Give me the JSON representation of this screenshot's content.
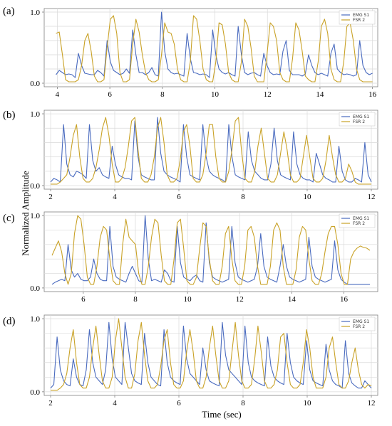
{
  "figure": {
    "ylabel": "Normalized Amplitude",
    "xlabel": "Time (sec)",
    "colors": {
      "emg": "#4a6bbf",
      "fsr": "#c9a227",
      "grid": "#d9d9d9",
      "axis": "#7f7f7f"
    }
  },
  "chart_data": [
    {
      "type": "line",
      "panel_label": "(a)",
      "xlim": [
        3.5,
        16.2
      ],
      "ylim": [
        -0.05,
        1.05
      ],
      "xticks": [
        "4",
        "6",
        "8",
        "10",
        "12",
        "14",
        "16"
      ],
      "yticks": [
        "0.0",
        "1.0"
      ],
      "grid": true,
      "legend": "top-right",
      "series": [
        {
          "name": "EMG S1",
          "x0": 3.95,
          "x1": 16.0,
          "values": [
            0.12,
            0.18,
            0.15,
            0.12,
            0.13,
            0.12,
            0.08,
            0.42,
            0.25,
            0.14,
            0.13,
            0.12,
            0.12,
            0.18,
            0.15,
            0.1,
            0.6,
            0.3,
            0.18,
            0.15,
            0.12,
            0.14,
            0.2,
            0.14,
            0.75,
            0.4,
            0.15,
            0.15,
            0.12,
            0.15,
            0.22,
            0.12,
            0.1,
            1.0,
            0.45,
            0.2,
            0.15,
            0.13,
            0.14,
            0.12,
            0.1,
            0.7,
            0.35,
            0.15,
            0.14,
            0.12,
            0.13,
            0.12,
            0.08,
            0.75,
            0.4,
            0.2,
            0.15,
            0.13,
            0.15,
            0.12,
            0.1,
            0.8,
            0.4,
            0.15,
            0.12,
            0.14,
            0.15,
            0.12,
            0.1,
            0.42,
            0.25,
            0.15,
            0.12,
            0.13,
            0.12,
            0.45,
            0.6,
            0.18,
            0.12,
            0.12,
            0.12,
            0.1,
            0.13,
            0.4,
            0.25,
            0.15,
            0.12,
            0.14,
            0.12,
            0.1,
            0.42,
            0.55,
            0.2,
            0.15,
            0.12,
            0.13,
            0.12,
            0.1,
            0.12,
            0.6,
            0.25,
            0.15,
            0.12,
            0.14
          ]
        },
        {
          "name": "FSR 2",
          "x0": 3.95,
          "x1": 16.0,
          "values": [
            0.7,
            0.72,
            0.4,
            0.05,
            0.02,
            0.02,
            0.02,
            0.05,
            0.25,
            0.6,
            0.7,
            0.45,
            0.1,
            0.02,
            0.02,
            0.05,
            0.5,
            0.9,
            0.95,
            0.7,
            0.15,
            0.02,
            0.02,
            0.05,
            0.55,
            0.9,
            0.72,
            0.4,
            0.15,
            0.05,
            0.02,
            0.02,
            0.05,
            0.4,
            0.85,
            0.72,
            0.7,
            0.55,
            0.2,
            0.05,
            0.02,
            0.02,
            0.3,
            0.95,
            0.9,
            0.6,
            0.2,
            0.05,
            0.02,
            0.02,
            0.3,
            0.85,
            0.82,
            0.55,
            0.15,
            0.05,
            0.02,
            0.02,
            0.3,
            0.9,
            0.8,
            0.5,
            0.1,
            0.02,
            0.02,
            0.02,
            0.4,
            0.85,
            0.8,
            0.6,
            0.15,
            0.05,
            0.02,
            0.02,
            0.35,
            0.85,
            0.75,
            0.45,
            0.1,
            0.05,
            0.02,
            0.02,
            0.3,
            0.8,
            0.9,
            0.7,
            0.2,
            0.05,
            0.02,
            0.02,
            0.3,
            0.8,
            0.85,
            0.6,
            0.2,
            0.05,
            0.02,
            0.02,
            0.02,
            0.02
          ]
        }
      ]
    },
    {
      "type": "line",
      "panel_label": "(b)",
      "xlim": [
        1.8,
        12.2
      ],
      "ylim": [
        -0.05,
        1.05
      ],
      "xticks": [
        "2",
        "4",
        "6",
        "8",
        "10",
        "12"
      ],
      "yticks": [
        "0.0",
        "1.0"
      ],
      "grid": true,
      "legend": "top-right",
      "series": [
        {
          "name": "EMG S1",
          "x0": 2.0,
          "x1": 12.0,
          "values": [
            0.05,
            0.1,
            0.08,
            0.05,
            0.85,
            0.3,
            0.15,
            0.12,
            0.2,
            0.18,
            0.15,
            0.1,
            0.85,
            0.35,
            0.2,
            0.25,
            0.15,
            0.12,
            0.1,
            0.55,
            0.3,
            0.15,
            0.12,
            0.1,
            0.1,
            0.08,
            0.9,
            0.4,
            0.15,
            0.12,
            0.1,
            0.08,
            0.08,
            0.95,
            0.45,
            0.2,
            0.15,
            0.12,
            0.1,
            0.08,
            0.05,
            0.85,
            0.4,
            0.15,
            0.12,
            0.1,
            0.08,
            0.85,
            0.4,
            0.2,
            0.15,
            0.12,
            0.1,
            0.08,
            0.05,
            0.85,
            0.4,
            0.15,
            0.12,
            0.1,
            0.08,
            0.75,
            0.35,
            0.2,
            0.15,
            0.1,
            0.08,
            0.08,
            0.3,
            0.8,
            0.35,
            0.15,
            0.12,
            0.1,
            0.08,
            0.75,
            0.3,
            0.15,
            0.1,
            0.08,
            0.08,
            0.05,
            0.45,
            0.3,
            0.15,
            0.1,
            0.08,
            0.05,
            0.05,
            0.55,
            0.2,
            0.08,
            0.05,
            0.05,
            0.1,
            0.08,
            0.05,
            0.6,
            0.15,
            0.05
          ]
        },
        {
          "name": "FSR 2",
          "x0": 2.0,
          "x1": 12.0,
          "values": [
            0.02,
            0.02,
            0.02,
            0.05,
            0.1,
            0.15,
            0.4,
            0.7,
            0.85,
            0.4,
            0.1,
            0.05,
            0.05,
            0.1,
            0.25,
            0.5,
            0.8,
            0.95,
            0.7,
            0.3,
            0.05,
            0.05,
            0.1,
            0.25,
            0.55,
            0.9,
            0.95,
            0.5,
            0.1,
            0.05,
            0.05,
            0.15,
            0.4,
            0.8,
            0.95,
            0.6,
            0.15,
            0.05,
            0.05,
            0.1,
            0.35,
            0.75,
            0.85,
            0.55,
            0.1,
            0.05,
            0.05,
            0.15,
            0.45,
            0.85,
            0.85,
            0.4,
            0.1,
            0.05,
            0.05,
            0.2,
            0.5,
            0.9,
            0.95,
            0.45,
            0.1,
            0.05,
            0.05,
            0.2,
            0.55,
            0.8,
            0.45,
            0.1,
            0.05,
            0.05,
            0.15,
            0.45,
            0.75,
            0.5,
            0.15,
            0.05,
            0.05,
            0.1,
            0.4,
            0.7,
            0.4,
            0.1,
            0.05,
            0.05,
            0.1,
            0.35,
            0.7,
            0.4,
            0.15,
            0.05,
            0.05,
            0.1,
            0.3,
            0.2,
            0.05,
            0.02,
            0.02,
            0.02,
            0.02,
            0.02
          ]
        }
      ]
    },
    {
      "type": "line",
      "panel_label": "(c)",
      "xlim": [
        4.5,
        17.3
      ],
      "ylim": [
        -0.05,
        1.05
      ],
      "xticks": [
        "6",
        "8",
        "10",
        "12",
        "14",
        "16"
      ],
      "yticks": [
        "0.0",
        "1.0"
      ],
      "grid": true,
      "legend": "top-right",
      "series": [
        {
          "name": "EMG S1",
          "x0": 4.8,
          "x1": 17.0,
          "values": [
            0.05,
            0.08,
            0.1,
            0.12,
            0.1,
            0.6,
            0.25,
            0.15,
            0.2,
            0.12,
            0.1,
            0.1,
            0.15,
            0.4,
            0.2,
            0.12,
            0.1,
            0.1,
            0.85,
            0.3,
            0.15,
            0.12,
            0.1,
            0.08,
            0.2,
            0.3,
            0.2,
            0.1,
            0.08,
            1.0,
            0.4,
            0.1,
            0.12,
            0.1,
            0.08,
            0.25,
            0.2,
            0.1,
            0.08,
            0.85,
            0.35,
            0.15,
            0.12,
            0.1,
            0.15,
            0.18,
            0.1,
            0.08,
            0.9,
            0.35,
            0.15,
            0.12,
            0.1,
            0.08,
            0.1,
            0.12,
            0.85,
            0.35,
            0.15,
            0.12,
            0.1,
            0.08,
            0.1,
            0.12,
            0.3,
            0.75,
            0.3,
            0.15,
            0.12,
            0.1,
            0.08,
            0.3,
            0.6,
            0.3,
            0.15,
            0.12,
            0.1,
            0.08,
            0.1,
            0.12,
            0.7,
            0.3,
            0.15,
            0.12,
            0.1,
            0.08,
            0.1,
            0.12,
            0.65,
            0.25,
            0.12,
            0.08,
            0.05,
            0.05,
            0.05,
            0.05,
            0.05,
            0.05,
            0.05,
            0.05
          ]
        },
        {
          "name": "FSR 2",
          "x0": 4.8,
          "x1": 17.0,
          "values": [
            0.45,
            0.55,
            0.65,
            0.5,
            0.2,
            0.05,
            0.2,
            0.75,
            1.0,
            0.95,
            0.6,
            0.15,
            0.05,
            0.05,
            0.3,
            0.7,
            0.85,
            0.8,
            0.4,
            0.1,
            0.05,
            0.05,
            0.6,
            0.95,
            0.7,
            0.65,
            0.6,
            0.2,
            0.05,
            0.05,
            0.3,
            0.7,
            0.95,
            0.9,
            0.45,
            0.1,
            0.05,
            0.05,
            0.4,
            0.9,
            0.95,
            0.55,
            0.1,
            0.05,
            0.05,
            0.15,
            0.55,
            0.9,
            0.85,
            0.4,
            0.1,
            0.05,
            0.05,
            0.3,
            0.75,
            0.85,
            0.4,
            0.1,
            0.05,
            0.05,
            0.3,
            0.8,
            0.85,
            0.7,
            0.3,
            0.05,
            0.05,
            0.05,
            0.3,
            0.8,
            0.9,
            0.8,
            0.3,
            0.05,
            0.05,
            0.05,
            0.25,
            0.7,
            0.85,
            0.8,
            0.4,
            0.1,
            0.05,
            0.05,
            0.2,
            0.5,
            0.75,
            0.85,
            0.85,
            0.6,
            0.2,
            0.05,
            0.05,
            0.4,
            0.5,
            0.55,
            0.58,
            0.56,
            0.55,
            0.52
          ]
        }
      ]
    },
    {
      "type": "line",
      "panel_label": "(d)",
      "xlim": [
        1.8,
        12.2
      ],
      "ylim": [
        -0.05,
        1.05
      ],
      "xticks": [
        "2",
        "4",
        "6",
        "8",
        "10",
        "12"
      ],
      "yticks": [
        "0.0",
        "1.0"
      ],
      "grid": true,
      "legend": "top-right",
      "series": [
        {
          "name": "EMG S1",
          "x0": 2.0,
          "x1": 12.0,
          "values": [
            0.05,
            0.1,
            0.75,
            0.3,
            0.15,
            0.1,
            0.08,
            0.45,
            0.2,
            0.1,
            0.08,
            0.3,
            0.85,
            0.4,
            0.2,
            0.15,
            0.1,
            0.3,
            0.95,
            0.45,
            0.2,
            0.15,
            0.1,
            0.95,
            0.6,
            0.25,
            0.15,
            0.12,
            0.1,
            0.8,
            0.4,
            0.2,
            0.15,
            0.1,
            0.08,
            0.85,
            0.4,
            0.2,
            0.15,
            0.12,
            0.1,
            0.9,
            0.45,
            0.25,
            0.2,
            0.15,
            0.1,
            0.6,
            0.3,
            0.15,
            0.12,
            0.1,
            0.08,
            0.95,
            0.5,
            0.3,
            0.25,
            0.2,
            0.15,
            0.1,
            0.9,
            0.4,
            0.2,
            0.15,
            0.12,
            0.1,
            0.08,
            0.75,
            0.35,
            0.2,
            0.15,
            0.12,
            0.1,
            0.8,
            0.4,
            0.2,
            0.15,
            0.12,
            0.1,
            0.7,
            0.3,
            0.15,
            0.12,
            0.1,
            0.08,
            0.65,
            0.3,
            0.15,
            0.1,
            0.08,
            0.05,
            0.7,
            0.25,
            0.12,
            0.08,
            0.05,
            0.05,
            0.15,
            0.1,
            0.05
          ]
        },
        {
          "name": "FSR 2",
          "x0": 2.0,
          "x1": 12.0,
          "values": [
            0.02,
            0.02,
            0.02,
            0.05,
            0.1,
            0.25,
            0.6,
            0.85,
            0.4,
            0.1,
            0.05,
            0.05,
            0.2,
            0.6,
            0.9,
            0.5,
            0.15,
            0.05,
            0.05,
            0.2,
            0.7,
            1.0,
            0.6,
            0.2,
            0.05,
            0.05,
            0.25,
            0.7,
            0.95,
            0.5,
            0.15,
            0.05,
            0.05,
            0.1,
            0.35,
            0.7,
            0.85,
            0.4,
            0.1,
            0.05,
            0.05,
            0.15,
            0.55,
            0.85,
            0.55,
            0.15,
            0.05,
            0.05,
            0.2,
            0.6,
            0.9,
            0.5,
            0.15,
            0.05,
            0.05,
            0.15,
            0.55,
            0.95,
            0.5,
            0.15,
            0.05,
            0.05,
            0.1,
            0.45,
            0.9,
            0.55,
            0.15,
            0.05,
            0.05,
            0.1,
            0.3,
            0.75,
            0.8,
            0.4,
            0.1,
            0.05,
            0.05,
            0.1,
            0.4,
            0.85,
            0.6,
            0.2,
            0.05,
            0.05,
            0.05,
            0.2,
            0.6,
            0.75,
            0.4,
            0.1,
            0.05,
            0.05,
            0.15,
            0.4,
            0.6,
            0.3,
            0.1,
            0.05,
            0.1,
            0.08
          ]
        }
      ]
    }
  ]
}
